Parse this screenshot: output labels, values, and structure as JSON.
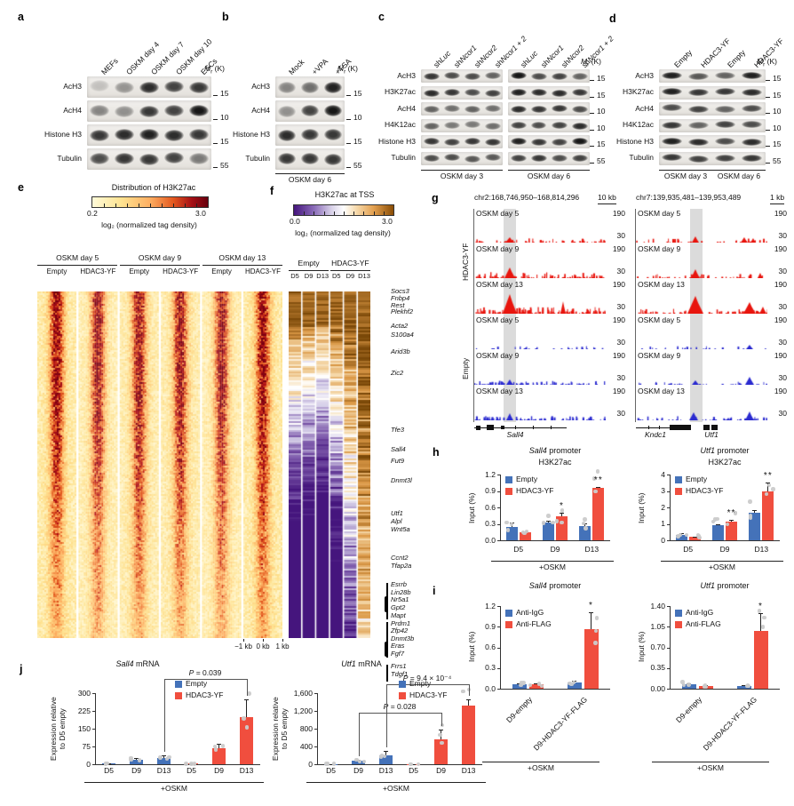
{
  "colors": {
    "blue": "#4472b9",
    "red": "#f04e3e",
    "dot": "#cbcbcb",
    "track_red": "#e8150e",
    "track_blue": "#2b2bd0",
    "highlight": "#bdbdbd"
  },
  "letters": {
    "a": "a",
    "b": "b",
    "c": "c",
    "d": "d",
    "e": "e",
    "f": "f",
    "g": "g",
    "h": "h",
    "i": "i",
    "j": "j"
  },
  "mr": {
    "m": "M",
    "sub": "r",
    "rest": " (K)"
  },
  "blot_a": {
    "lanes": [
      {
        "t": "MEFs"
      },
      {
        "t": "OSKM day 4"
      },
      {
        "t": "OSKM day 7"
      },
      {
        "t": "OSKM day 10"
      },
      {
        "t": "ESCs"
      }
    ],
    "rows": [
      {
        "name": "AcH3",
        "mr": "15"
      },
      {
        "name": "AcH4",
        "mr": "10"
      },
      {
        "name": "Histone H3",
        "mr": "15"
      },
      {
        "name": "Tubulin",
        "mr": "55"
      }
    ]
  },
  "blot_b": {
    "lanes": [
      {
        "t": "Mock"
      },
      {
        "t": "+VPA"
      },
      {
        "t": "+TSA"
      }
    ],
    "rows": [
      {
        "name": "AcH3",
        "mr": "15"
      },
      {
        "name": "AcH4",
        "mr": "10"
      },
      {
        "name": "Histone H3",
        "mr": "15"
      },
      {
        "name": "Tubulin",
        "mr": "55"
      }
    ],
    "captions": [
      "OSKM day 6"
    ]
  },
  "blot_c": {
    "lanes": [
      {
        "t": "sh",
        "em": "Luc"
      },
      {
        "t": "sh",
        "em": "Ncor1"
      },
      {
        "t": "sh",
        "em": "Ncor2"
      },
      {
        "t": "sh",
        "em": "Ncor1 + 2"
      },
      {
        "t": "sh",
        "em": "Luc"
      },
      {
        "t": "sh",
        "em": "Ncor1"
      },
      {
        "t": "sh",
        "em": "Ncor2"
      },
      {
        "t": "sh",
        "em": "Ncor1 + 2"
      }
    ],
    "rows": [
      {
        "name": "AcH3",
        "mr": "15"
      },
      {
        "name": "H3K27ac",
        "mr": "15"
      },
      {
        "name": "AcH4",
        "mr": "10"
      },
      {
        "name": "H4K12ac",
        "mr": "10"
      },
      {
        "name": "Histone H3",
        "mr": "15"
      },
      {
        "name": "Tubulin",
        "mr": "55"
      }
    ],
    "captions": [
      "OSKM day 3",
      "OSKM day 6"
    ]
  },
  "blot_d": {
    "lanes": [
      {
        "t": "Empty"
      },
      {
        "t": "HDAC3-YF"
      },
      {
        "t": "Empty"
      },
      {
        "t": "HDAC3-YF"
      }
    ],
    "rows": [
      {
        "name": "AcH3",
        "mr": "15"
      },
      {
        "name": "H3K27ac",
        "mr": "15"
      },
      {
        "name": "AcH4",
        "mr": "10"
      },
      {
        "name": "H4K12ac",
        "mr": "10"
      },
      {
        "name": "Histone H3",
        "mr": "15"
      },
      {
        "name": "Tubulin",
        "mr": "55"
      }
    ],
    "captions": [
      "OSKM day 3",
      "OSKM day 6"
    ]
  },
  "heat_e": {
    "title": "Distribution of H3K27ac",
    "scale_min": "0.2",
    "scale_max": "3.0",
    "scale_label": "log₂ (normalized tag density)",
    "groups": [
      "OSKM day 5",
      "OSKM day 9",
      "OSKM day 13"
    ],
    "subcols": [
      "Empty",
      "HDAC3-YF"
    ],
    "xticks": [
      "−1 kb",
      "0 kb",
      "1 kb"
    ]
  },
  "heat_f": {
    "title": "H3K27ac at TSS",
    "scale_min": "0.0",
    "scale_max": "3.0",
    "scale_label": "log₂ (normalized tag density)",
    "groups": [
      "Empty",
      "HDAC3-YF"
    ],
    "subcols": [
      "D5",
      "D9",
      "D13"
    ],
    "genes": [
      {
        "n": "Socs3",
        "p": 0.0
      },
      {
        "n": "Fnbp4",
        "p": 0.02
      },
      {
        "n": "Rest",
        "p": 0.04
      },
      {
        "n": "Plekhf2",
        "p": 0.06
      },
      {
        "n": "Acta2",
        "p": 0.1
      },
      {
        "n": "S100a4",
        "p": 0.125
      },
      {
        "n": "Arid3b",
        "p": 0.175
      },
      {
        "n": "Zic2",
        "p": 0.235
      },
      {
        "n": "Tfe3",
        "p": 0.4
      },
      {
        "n": "Sall4",
        "p": 0.456
      },
      {
        "n": "Fut9",
        "p": 0.49
      },
      {
        "n": "Dnmt3l",
        "p": 0.545
      },
      {
        "n": "Utf1",
        "p": 0.64
      },
      {
        "n": "Alpl",
        "p": 0.663
      },
      {
        "n": "Wnt5a",
        "p": 0.686
      },
      {
        "n": "Ccnt2",
        "p": 0.77
      },
      {
        "n": "Tfap2a",
        "p": 0.793
      },
      {
        "n": "Esrrb",
        "p": 0.845
      },
      {
        "n": "Lin28b",
        "p": 0.868
      },
      {
        "n": "Nr5a1",
        "p": 0.891
      },
      {
        "n": "Gpt2",
        "p": 0.913
      },
      {
        "n": "Mapt",
        "p": 0.935
      },
      {
        "n": "Prdm1",
        "p": 0.958
      },
      {
        "n": "Zfp42",
        "p": 0.98
      },
      {
        "n": "Dnmt3b",
        "p": 1.002
      },
      {
        "n": "Eras",
        "p": 1.024
      },
      {
        "n": "Fgf7",
        "p": 1.046
      },
      {
        "n": "Frrs1",
        "p": 1.082
      },
      {
        "n": "Tdgf1",
        "p": 1.104
      }
    ]
  },
  "browser_g": {
    "left": {
      "coords": "chr2:168,746,950–168,814,296",
      "scale": "10 kb"
    },
    "right": {
      "coords": "chr7:139,935,481–139,953,489",
      "scale": "1 kb"
    },
    "conditions": [
      "HDAC3-YF",
      "Empty"
    ],
    "tracks": [
      "OSKM day 5",
      "OSKM day 9",
      "OSKM day 13"
    ],
    "ymax": "190",
    "ymin": "30",
    "genes_left": [
      {
        "n": "Sall4"
      }
    ],
    "genes_right": [
      {
        "n": "Kndc1"
      },
      {
        "n": "Utf1"
      }
    ]
  },
  "chart_data": [
    {
      "id": "h1",
      "type": "bar",
      "title_em": "Sall4",
      "title_rest": " promoter",
      "subtitle": "H3K27ac",
      "ylabel": "Input (%)",
      "ylim": [
        0,
        1.2
      ],
      "yticks": [
        "0.0",
        "0.3",
        "0.6",
        "0.9",
        "1.2"
      ],
      "categories": [
        "D5",
        "D9",
        "D13"
      ],
      "series": [
        {
          "name": "Empty",
          "values": [
            0.25,
            0.32,
            0.26
          ],
          "errors": [
            0.08,
            0.03,
            0.05
          ]
        },
        {
          "name": "HDAC3-YF",
          "values": [
            0.15,
            0.44,
            0.95
          ],
          "errors": [
            0.02,
            0.06,
            0.03
          ]
        }
      ],
      "sig": [
        {
          "cat": 1,
          "text": "*"
        },
        {
          "cat": 2,
          "text": "**"
        }
      ],
      "xgroup": "+OSKM"
    },
    {
      "id": "h2",
      "type": "bar",
      "title_em": "Utf1",
      "title_rest": " promoter",
      "subtitle": "H3K27ac",
      "ylabel": "Input (%)",
      "ylim": [
        0,
        4
      ],
      "yticks": [
        "0",
        "1",
        "2",
        "3",
        "4"
      ],
      "categories": [
        "D5",
        "D9",
        "D13"
      ],
      "series": [
        {
          "name": "Empty",
          "values": [
            0.35,
            0.92,
            1.7
          ],
          "errors": [
            0.06,
            0.08,
            0.15
          ]
        },
        {
          "name": "HDAC3-YF",
          "values": [
            0.2,
            1.15,
            2.95
          ],
          "errors": [
            0.04,
            0.1,
            0.55
          ]
        }
      ],
      "sig": [
        {
          "cat": 1,
          "text": "**"
        },
        {
          "cat": 2,
          "text": "**"
        }
      ],
      "xgroup": "+OSKM"
    },
    {
      "id": "i1",
      "type": "bar",
      "title_em": "Sall4",
      "title_rest": " promoter",
      "ylabel": "Input (%)",
      "ylim": [
        0,
        1.2
      ],
      "yticks": [
        "0.0",
        "0.3",
        "0.6",
        "0.9",
        "1.2"
      ],
      "categories": [
        "D9-empty",
        "D9-HDAC3-YF-FLAG"
      ],
      "series": [
        {
          "name": "Anti-IgG",
          "values": [
            0.06,
            0.09
          ],
          "errors": [
            0.02,
            0.03
          ]
        },
        {
          "name": "Anti-FLAG",
          "values": [
            0.06,
            0.86
          ],
          "errors": [
            0.02,
            0.25
          ]
        }
      ],
      "sig": [
        {
          "cat": 1,
          "text": "*"
        }
      ],
      "xgroup": "+OSKM"
    },
    {
      "id": "i2",
      "type": "bar",
      "title_em": "Utf1",
      "title_rest": " promoter",
      "ylabel": "Input (%)",
      "ylim": [
        0,
        1.4
      ],
      "yticks": [
        "0.00",
        "0.35",
        "0.70",
        "1.05",
        "1.40"
      ],
      "categories": [
        "D9-empty",
        "D9-HDAC3-YF-FLAG"
      ],
      "series": [
        {
          "name": "Anti-IgG",
          "values": [
            0.07,
            0.05
          ],
          "errors": [
            0.02,
            0.01
          ]
        },
        {
          "name": "Anti-FLAG",
          "values": [
            0.05,
            0.98
          ],
          "errors": [
            0.01,
            0.3
          ]
        }
      ],
      "sig": [
        {
          "cat": 1,
          "text": "*"
        }
      ],
      "xgroup": "+OSKM"
    },
    {
      "id": "j1",
      "type": "bar",
      "title_em": "Sall4",
      "title_rest": " mRNA",
      "ylabel2": [
        "Expression relative",
        "to D5 empty"
      ],
      "ylim": [
        0,
        300
      ],
      "yticks": [
        "0",
        "75",
        "150",
        "225",
        "300"
      ],
      "categories": [
        "D5",
        "D9",
        "D13",
        "D5",
        "D9",
        "D13"
      ],
      "flat": {
        "names": [
          "Empty",
          "HDAC3-YF"
        ],
        "split": 3,
        "values": [
          2,
          20,
          27,
          2,
          68,
          200
        ],
        "errors": [
          1,
          6,
          9,
          1,
          18,
          72
        ]
      },
      "brackets": [
        {
          "from": 2,
          "to": 5,
          "label": "P = 0.039",
          "level": 1.2
        }
      ],
      "xgroup": "+OSKM"
    },
    {
      "id": "j2",
      "type": "bar",
      "title_em": "Utf1",
      "title_rest": " mRNA",
      "ylabel2": [
        "Expression relative",
        "to D5 empty"
      ],
      "ylim": [
        0,
        1600
      ],
      "yticks": [
        "0",
        "400",
        "800",
        "1,200",
        "1,600"
      ],
      "categories": [
        "D5",
        "D9",
        "D13",
        "D5",
        "D9",
        "D13"
      ],
      "flat": {
        "names": [
          "Empty",
          "HDAC3-YF"
        ],
        "split": 3,
        "values": [
          5,
          75,
          205,
          5,
          570,
          1330
        ],
        "errors": [
          2,
          30,
          90,
          2,
          210,
          130
        ]
      },
      "brackets": [
        {
          "from": 1,
          "to": 4,
          "label": "P = 0.028",
          "level": 0.725
        },
        {
          "from": 2,
          "to": 5,
          "label": "P = 9.4 × 10⁻⁴",
          "level": 1.125
        }
      ],
      "xgroup": "+OSKM"
    }
  ]
}
